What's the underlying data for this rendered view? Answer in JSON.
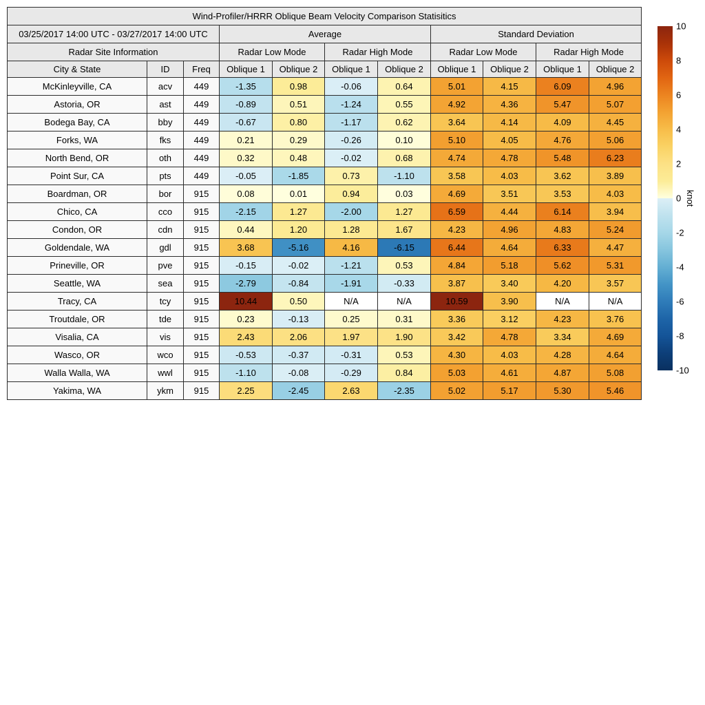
{
  "table": {
    "title": "Wind-Profiler/HRRR Oblique Beam Velocity Comparison Statisitics",
    "date_range": "03/25/2017 14:00 UTC - 03/27/2017 14:00 UTC",
    "header": {
      "average": "Average",
      "standard_deviation": "Standard Deviation",
      "radar_site_information": "Radar Site Information",
      "radar_low_mode": "Radar Low Mode",
      "radar_high_mode": "Radar High Mode",
      "city_state": "City & State",
      "id": "ID",
      "freq": "Freq",
      "oblique_1": "Oblique 1",
      "oblique_2": "Oblique 2"
    }
  },
  "chart_data": {
    "type": "heatmap",
    "title": "Wind-Profiler/HRRR Oblique Beam Velocity Comparison Statisitics",
    "date_range": "03/25/2017 14:00 UTC - 03/27/2017 14:00 UTC",
    "columns": [
      "City & State",
      "ID",
      "Freq",
      "Average Radar Low Mode Oblique 1",
      "Average Radar Low Mode Oblique 2",
      "Average Radar High Mode Oblique 1",
      "Average Radar High Mode Oblique 2",
      "Standard Deviation Radar Low Mode Oblique 1",
      "Standard Deviation Radar Low Mode Oblique 2",
      "Standard Deviation Radar High Mode Oblique 1",
      "Standard Deviation Radar High Mode Oblique 2"
    ],
    "rows": [
      {
        "city": "McKinleyville, CA",
        "id": "acv",
        "freq": "449",
        "values": [
          "-1.35",
          "0.98",
          "-0.06",
          "0.64",
          "5.01",
          "4.15",
          "6.09",
          "4.96"
        ]
      },
      {
        "city": "Astoria, OR",
        "id": "ast",
        "freq": "449",
        "values": [
          "-0.89",
          "0.51",
          "-1.24",
          "0.55",
          "4.92",
          "4.36",
          "5.47",
          "5.07"
        ]
      },
      {
        "city": "Bodega Bay, CA",
        "id": "bby",
        "freq": "449",
        "values": [
          "-0.67",
          "0.80",
          "-1.17",
          "0.62",
          "3.64",
          "4.14",
          "4.09",
          "4.45"
        ]
      },
      {
        "city": "Forks, WA",
        "id": "fks",
        "freq": "449",
        "values": [
          "0.21",
          "0.29",
          "-0.26",
          "0.10",
          "5.10",
          "4.05",
          "4.76",
          "5.06"
        ]
      },
      {
        "city": "North Bend, OR",
        "id": "oth",
        "freq": "449",
        "values": [
          "0.32",
          "0.48",
          "-0.02",
          "0.68",
          "4.74",
          "4.78",
          "5.48",
          "6.23"
        ]
      },
      {
        "city": "Point Sur, CA",
        "id": "pts",
        "freq": "449",
        "values": [
          "-0.05",
          "-1.85",
          "0.73",
          "-1.10",
          "3.58",
          "4.03",
          "3.62",
          "3.89"
        ]
      },
      {
        "city": "Boardman, OR",
        "id": "bor",
        "freq": "915",
        "values": [
          "0.08",
          "0.01",
          "0.94",
          "0.03",
          "4.69",
          "3.51",
          "3.53",
          "4.03"
        ]
      },
      {
        "city": "Chico, CA",
        "id": "cco",
        "freq": "915",
        "values": [
          "-2.15",
          "1.27",
          "-2.00",
          "1.27",
          "6.59",
          "4.44",
          "6.14",
          "3.94"
        ]
      },
      {
        "city": "Condon, OR",
        "id": "cdn",
        "freq": "915",
        "values": [
          "0.44",
          "1.20",
          "1.28",
          "1.67",
          "4.23",
          "4.96",
          "4.83",
          "5.24"
        ]
      },
      {
        "city": "Goldendale, WA",
        "id": "gdl",
        "freq": "915",
        "values": [
          "3.68",
          "-5.16",
          "4.16",
          "-6.15",
          "6.44",
          "4.64",
          "6.33",
          "4.47"
        ]
      },
      {
        "city": "Prineville, OR",
        "id": "pve",
        "freq": "915",
        "values": [
          "-0.15",
          "-0.02",
          "-1.21",
          "0.53",
          "4.84",
          "5.18",
          "5.62",
          "5.31"
        ]
      },
      {
        "city": "Seattle, WA",
        "id": "sea",
        "freq": "915",
        "values": [
          "-2.79",
          "-0.84",
          "-1.91",
          "-0.33",
          "3.87",
          "3.40",
          "4.20",
          "3.57"
        ]
      },
      {
        "city": "Tracy, CA",
        "id": "tcy",
        "freq": "915",
        "values": [
          "10.44",
          "0.50",
          "N/A",
          "N/A",
          "10.59",
          "3.90",
          "N/A",
          "N/A"
        ]
      },
      {
        "city": "Troutdale, OR",
        "id": "tde",
        "freq": "915",
        "values": [
          "0.23",
          "-0.13",
          "0.25",
          "0.31",
          "3.36",
          "3.12",
          "4.23",
          "3.76"
        ]
      },
      {
        "city": "Visalia, CA",
        "id": "vis",
        "freq": "915",
        "values": [
          "2.43",
          "2.06",
          "1.97",
          "1.90",
          "3.42",
          "4.78",
          "3.34",
          "4.69"
        ]
      },
      {
        "city": "Wasco, OR",
        "id": "wco",
        "freq": "915",
        "values": [
          "-0.53",
          "-0.37",
          "-0.31",
          "0.53",
          "4.30",
          "4.03",
          "4.28",
          "4.64"
        ]
      },
      {
        "city": "Walla Walla, WA",
        "id": "wwl",
        "freq": "915",
        "values": [
          "-1.10",
          "-0.08",
          "-0.29",
          "0.84",
          "5.03",
          "4.61",
          "4.87",
          "5.08"
        ]
      },
      {
        "city": "Yakima, WA",
        "id": "ykm",
        "freq": "915",
        "values": [
          "2.25",
          "-2.45",
          "2.63",
          "-2.35",
          "5.02",
          "5.17",
          "5.30",
          "5.46"
        ]
      }
    ],
    "colorbar": {
      "label": "knot",
      "min": -10,
      "max": 10,
      "ticks": [
        "10",
        "8",
        "6",
        "4",
        "2",
        "0",
        "-2",
        "-4",
        "-6",
        "-8",
        "-10"
      ]
    },
    "colors": {
      "positive_stops": [
        [
          0,
          "#ffffdf"
        ],
        [
          1,
          "#fcec97"
        ],
        [
          2,
          "#fce185"
        ],
        [
          3,
          "#fad264"
        ],
        [
          4,
          "#f7bd49"
        ],
        [
          5,
          "#f3a232"
        ],
        [
          6,
          "#ec8420"
        ],
        [
          7,
          "#e16512"
        ],
        [
          8,
          "#cd4a0a"
        ],
        [
          9,
          "#a93208"
        ],
        [
          10,
          "#8c250f"
        ]
      ],
      "negative_stops": [
        [
          0,
          "#dceff6"
        ],
        [
          1,
          "#bfe2ee"
        ],
        [
          2,
          "#a6d7e8"
        ],
        [
          3,
          "#86c5de"
        ],
        [
          4,
          "#64afd3"
        ],
        [
          5,
          "#4394c6"
        ],
        [
          6,
          "#2f7cb9"
        ],
        [
          7,
          "#1e65a8"
        ],
        [
          8,
          "#145498"
        ],
        [
          9,
          "#0d3f79"
        ],
        [
          10,
          "#09305f"
        ]
      ],
      "na_bg": "#ffffff",
      "header_bg": "#e8e8e8",
      "info_bg": "#f9f9f9",
      "border": "#2b2b2b",
      "text": "#000000",
      "page_bg": "#ffffff"
    }
  }
}
